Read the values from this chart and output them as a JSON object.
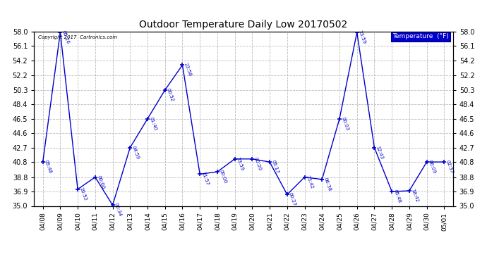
{
  "title": "Outdoor Temperature Daily Low 20170502",
  "copyright_text": "Copyright 2017  Cartronics.com",
  "line_color": "#0000cc",
  "background_color": "#ffffff",
  "grid_color": "#bbbbbb",
  "legend_bg": "#0000cc",
  "legend_text": "Temperature  (°F)",
  "ylim": [
    35.0,
    58.0
  ],
  "yticks": [
    35.0,
    36.9,
    38.8,
    40.8,
    42.7,
    44.6,
    46.5,
    48.4,
    50.3,
    52.2,
    54.2,
    56.1,
    58.0
  ],
  "dates": [
    "04/08",
    "04/09",
    "04/10",
    "04/11",
    "04/12",
    "04/13",
    "04/14",
    "04/15",
    "04/16",
    "04/17",
    "04/18",
    "04/19",
    "04/20",
    "04/21",
    "04/22",
    "04/23",
    "04/24",
    "04/25",
    "04/26",
    "04/27",
    "04/28",
    "04/29",
    "04/30",
    "05/01"
  ],
  "values": [
    40.8,
    57.9,
    37.2,
    38.8,
    35.1,
    42.7,
    46.5,
    50.3,
    53.6,
    39.2,
    39.5,
    41.2,
    41.2,
    40.8,
    36.5,
    38.8,
    38.5,
    46.5,
    57.9,
    42.7,
    36.9,
    37.0,
    40.8,
    40.8
  ],
  "point_labels": [
    "05:48",
    "05:26",
    "20:52",
    "00:00",
    "06:34",
    "04:59",
    "01:40",
    "00:52",
    "23:58",
    "21:57",
    "00:00",
    "23:59",
    "00:20",
    "05:17",
    "00:27",
    "23:42",
    "06:38",
    "00:03",
    "23:59",
    "12:43",
    "05:48",
    "18:42",
    "06:09",
    "02:37"
  ]
}
